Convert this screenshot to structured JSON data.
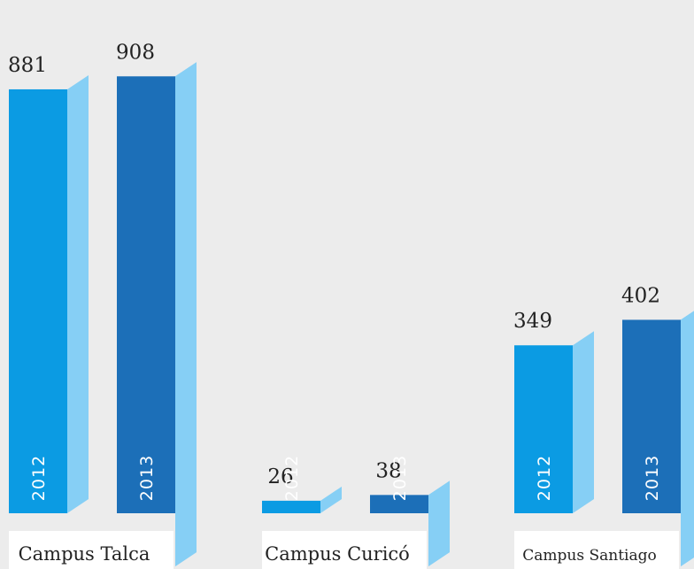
{
  "chart_data": {
    "type": "bar",
    "categories": [
      "Campus Talca",
      "Campus Curicó",
      "Campus Santiago"
    ],
    "series": [
      {
        "name": "2012",
        "values": [
          881,
          26,
          349
        ]
      },
      {
        "name": "2013",
        "values": [
          908,
          38,
          402
        ]
      }
    ],
    "title": "",
    "xlabel": "",
    "ylabel": "",
    "ylim": [
      0,
      960
    ],
    "grid": false,
    "legend": "none",
    "colors": {
      "2012": "#0b9be3",
      "2013": "#1c6fb8",
      "side": "#86cff5",
      "label_box": "#ffffff",
      "background": "#ececec"
    }
  }
}
